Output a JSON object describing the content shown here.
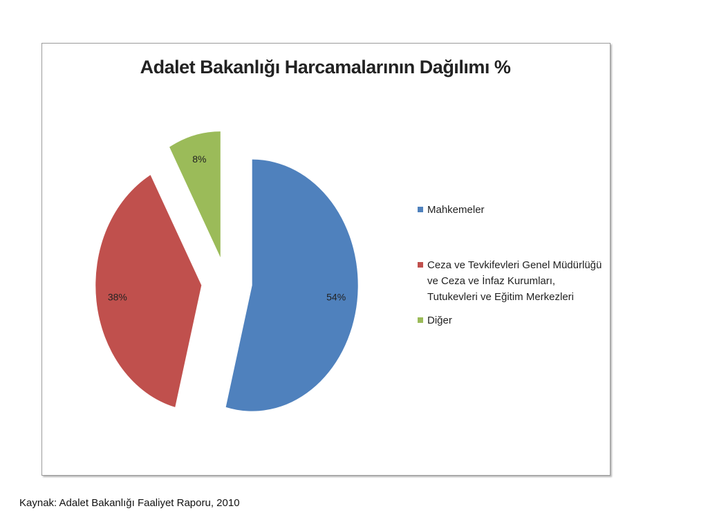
{
  "chart_data": {
    "type": "pie",
    "title": "Adalet Bakanlığı Harcamalarının Dağılımı %",
    "categories": [
      "Mahkemeler",
      "Ceza ve Tevkifevleri Genel Müdürlüğü ve Ceza ve İnfaz Kurumları, Tutukevleri ve Eğitim Merkezleri",
      "Diğer"
    ],
    "values": [
      54,
      38,
      8
    ],
    "value_labels": [
      "54%",
      "38%",
      "8%"
    ],
    "colors": [
      "#4f81bd",
      "#c0504d",
      "#9bbb59"
    ],
    "legend": "right",
    "note": "Kaynak: Adalet Bakanlığı Faaliyet Raporu, 2010"
  }
}
